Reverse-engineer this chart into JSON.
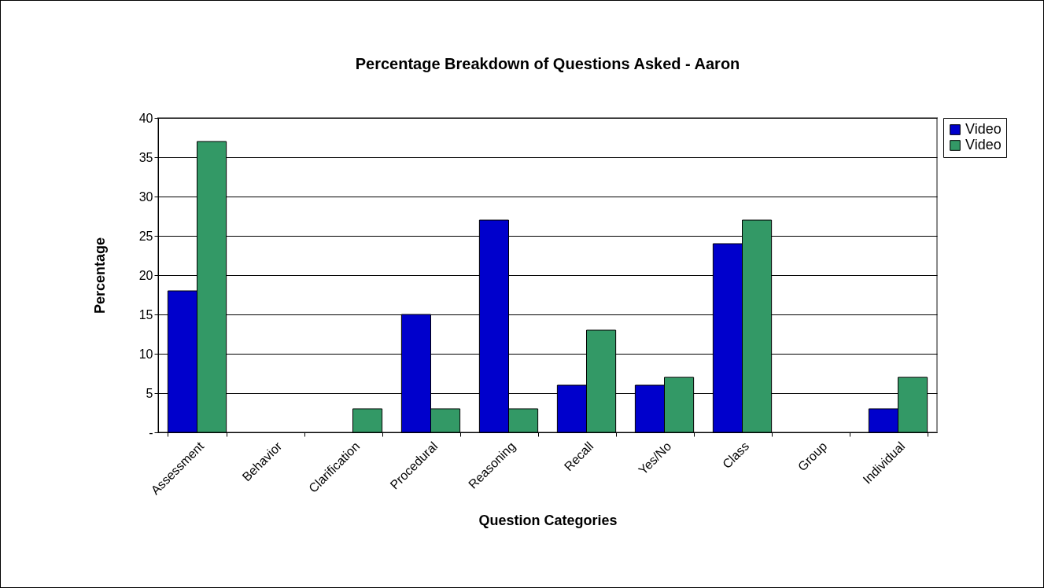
{
  "chart_data": {
    "type": "bar",
    "title": "Percentage Breakdown of Questions Asked - Aaron",
    "xlabel": "Question Categories",
    "ylabel": "Percentage",
    "categories": [
      "Assessment",
      "Behavior",
      "Clarification",
      "Procedural",
      "Reasoning",
      "Recall",
      "Yes/No",
      "Class",
      "Group",
      "Individual"
    ],
    "series": [
      {
        "name": "Video",
        "color": "#0000cc",
        "values": [
          18,
          0,
          0,
          15,
          27,
          6,
          6,
          24,
          0,
          3
        ]
      },
      {
        "name": "Video",
        "color": "#339966",
        "values": [
          37,
          0,
          3,
          3,
          3,
          13,
          7,
          27,
          0,
          7
        ]
      }
    ],
    "ylim": [
      0,
      40
    ],
    "yticks": [
      {
        "value": 0,
        "label": "-"
      },
      5,
      10,
      15,
      20,
      25,
      30,
      35,
      40
    ],
    "grid": "y",
    "legend": "right"
  }
}
